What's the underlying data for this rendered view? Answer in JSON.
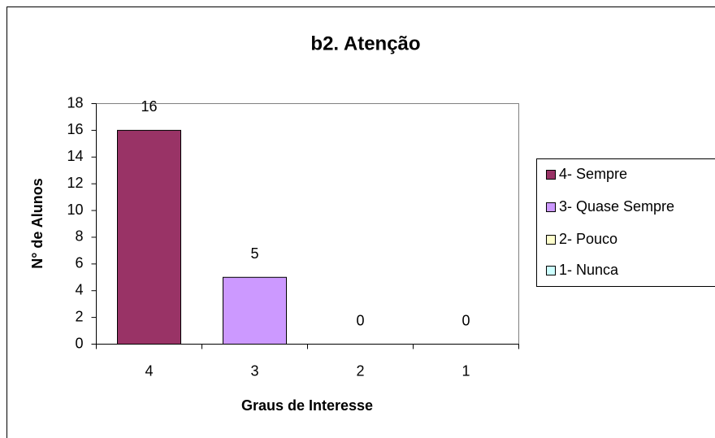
{
  "chart_data": {
    "type": "bar",
    "title": "b2. Atenção",
    "x_label": "Graus de Interesse",
    "y_label": "N° de Alunos",
    "categories": [
      "4",
      "3",
      "2",
      "1"
    ],
    "values": [
      16,
      5,
      0,
      0
    ],
    "colors": [
      "#993366",
      "#CC99FF",
      "#FFFFCC",
      "#CCFFFF"
    ],
    "legend_labels": [
      "4- Sempre",
      "3- Quase Sempre",
      "2- Pouco",
      "1- Nunca"
    ],
    "ylim": [
      0,
      18
    ],
    "yticks": [
      0,
      2,
      4,
      6,
      8,
      10,
      12,
      14,
      16,
      18
    ],
    "grid": false
  }
}
